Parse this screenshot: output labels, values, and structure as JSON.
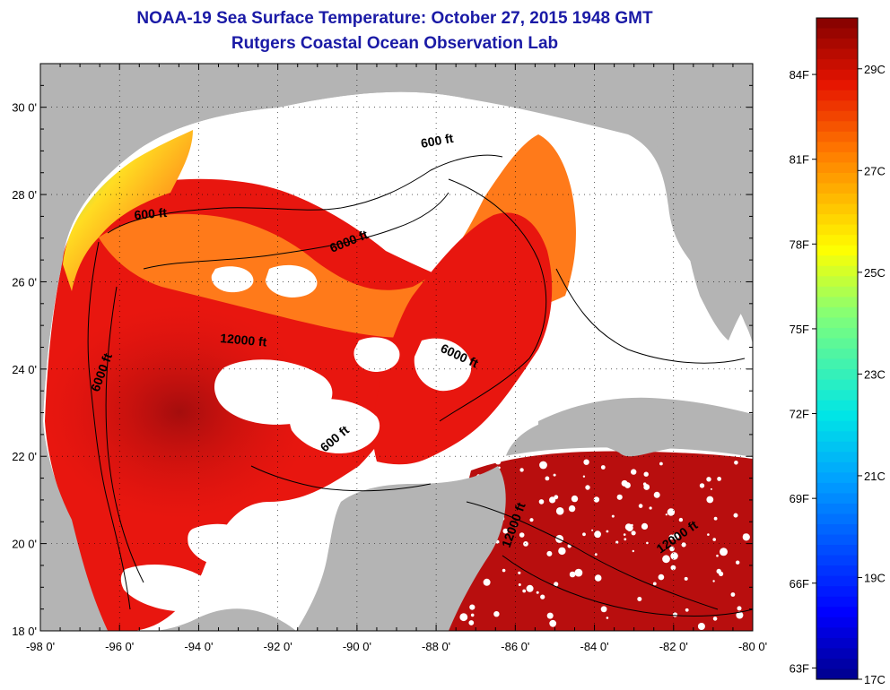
{
  "title": {
    "line1": "NOAA-19 Sea Surface Temperature:  October 27, 2015 1948 GMT",
    "line2": "Rutgers Coastal Ocean Observation Lab"
  },
  "map": {
    "lon_labels": [
      "-98 0'",
      "-96 0'",
      "-94 0'",
      "-92 0'",
      "-90 0'",
      "-88 0'",
      "-86 0'",
      "-84 0'",
      "-82 0'",
      "-80 0'"
    ],
    "lat_labels": [
      "18 0'",
      "20 0'",
      "22 0'",
      "24 0'",
      "26 0'",
      "28 0'",
      "30 0'"
    ],
    "contour_labels": [
      {
        "name": "contour-600ft-north",
        "text": "600 ft"
      },
      {
        "name": "contour-600ft-west",
        "text": "600 ft"
      },
      {
        "name": "contour-6000ft-north",
        "text": "6000 ft"
      },
      {
        "name": "contour-12000ft-central",
        "text": "12000 ft"
      },
      {
        "name": "contour-6000ft-west",
        "text": "6000 ft"
      },
      {
        "name": "contour-6000ft-east",
        "text": "6000 ft"
      },
      {
        "name": "contour-600ft-yucatan",
        "text": "600 ft"
      },
      {
        "name": "contour-12000ft-caribbean-west",
        "text": "12000 ft"
      },
      {
        "name": "contour-12000ft-caribbean-east",
        "text": "12000 ft"
      }
    ],
    "colors": {
      "land": "#b4b4b4",
      "cloud": "#ffffff",
      "warm": "#e8160f",
      "hot": "#b80e0e",
      "orange": "#ff7a1a"
    }
  },
  "colorbar": {
    "fahrenheit_labels": [
      "84F",
      "81F",
      "78F",
      "75F",
      "72F",
      "69F",
      "66F",
      "63F"
    ],
    "celsius_labels": [
      "29C",
      "27C",
      "25C",
      "23C",
      "21C",
      "19C",
      "17C"
    ],
    "min_c": 17,
    "max_c": 30
  }
}
